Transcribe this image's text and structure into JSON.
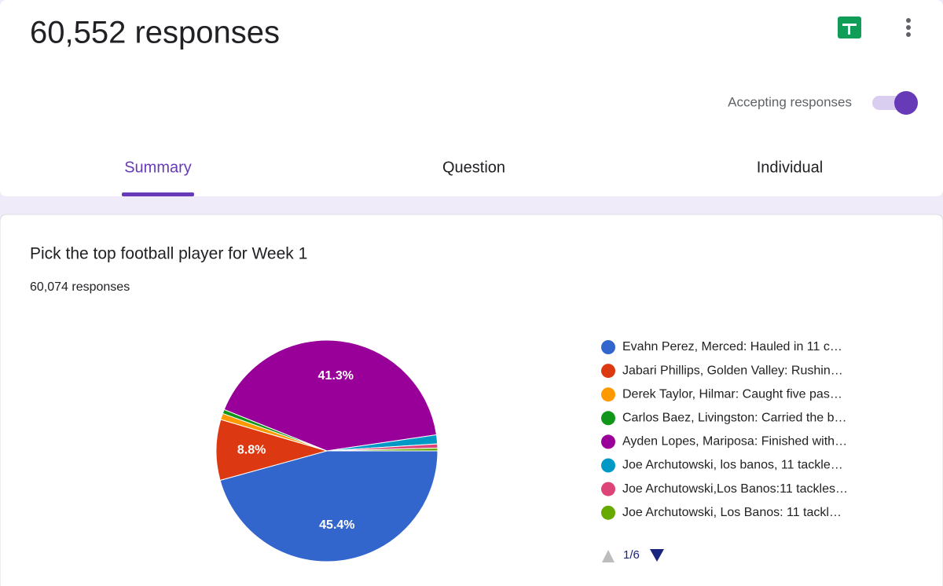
{
  "header": {
    "title": "60,552 responses",
    "accepting": "Accepting responses"
  },
  "tabs": [
    "Summary",
    "Question",
    "Individual"
  ],
  "question": {
    "title": "Pick the top football player for Week 1",
    "count": "60,074 responses"
  },
  "chart_data": {
    "type": "pie",
    "categories": [
      "Evahn Perez, Merced: Hauled in 11 c…",
      "Jabari Phillips, Golden Valley: Rushin…",
      "Derek Taylor, Hilmar: Caught five pas…",
      "Carlos Baez, Livingston: Carried the b…",
      "Ayden Lopes, Mariposa: Finished with…",
      "Joe Archutowski, los banos, 11 tackle…",
      "Joe Archutowski,Los Banos:11 tackles…",
      "Joe Archutowski, Los Banos: 11 tackl…"
    ],
    "values": [
      45.4,
      8.8,
      0.9,
      0.6,
      41.3,
      1.3,
      0.6,
      0.4
    ],
    "value_labels": [
      "45.4%",
      "8.8%",
      null,
      null,
      "41.3%",
      null,
      null,
      null
    ],
    "colors": [
      "#3366cc",
      "#dc3912",
      "#ff9900",
      "#109618",
      "#990099",
      "#0099c6",
      "#dd4477",
      "#66aa00"
    ],
    "pager": "1/6"
  }
}
